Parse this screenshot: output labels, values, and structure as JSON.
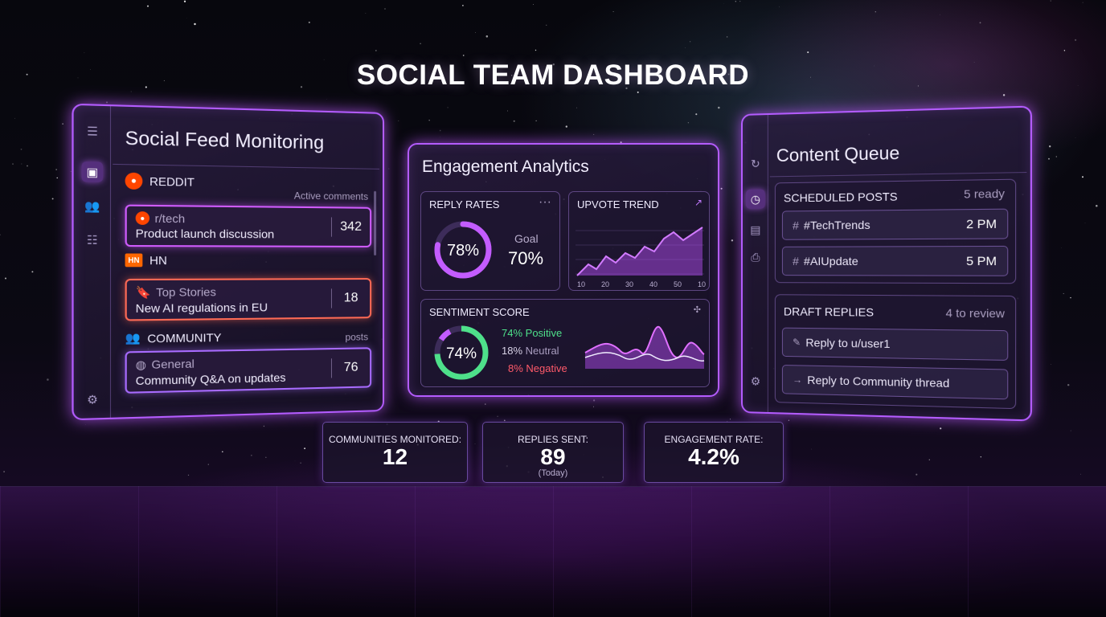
{
  "title": "SOCIAL TEAM DASHBOARD",
  "feed": {
    "title": "Social Feed Monitoring",
    "reddit": {
      "label": "REDDIT",
      "hint": "Active comments",
      "card": {
        "source": "r/tech",
        "text": "Product launch discussion",
        "count": "342"
      }
    },
    "hn": {
      "label": "HN",
      "badge": "HN",
      "card": {
        "source": "Top Stories",
        "text": "New AI regulations in EU",
        "count": "18"
      }
    },
    "community": {
      "label": "COMMUNITY",
      "hint": "posts",
      "card": {
        "source": "General",
        "text": "Community Q&A on updates",
        "count": "76"
      }
    }
  },
  "analytics": {
    "title": "Engagement Analytics",
    "reply_rates": {
      "label": "REPLY RATES",
      "value": "78%",
      "fraction": 0.78,
      "goal_label": "Goal",
      "goal_value": "70%"
    },
    "upvote_trend": {
      "label": "UPVOTE TREND",
      "ticks": [
        "10",
        "20",
        "30",
        "40",
        "50",
        "10"
      ]
    },
    "sentiment": {
      "label": "SENTIMENT SCORE",
      "value": "74%",
      "positive": {
        "pct": "74%",
        "label": "Positive",
        "color": "#4ee08a"
      },
      "neutral": {
        "pct": "18%",
        "label": "Neutral",
        "color": "#d8d2e6"
      },
      "negative": {
        "pct": "8%",
        "label": "Negative",
        "color": "#ff5a6a"
      }
    }
  },
  "queue": {
    "title": "Content Queue",
    "scheduled": {
      "label": "SCHEDULED POSTS",
      "status": "5 ready",
      "items": [
        {
          "tag": "#TechTrends",
          "time": "2 PM"
        },
        {
          "tag": "#AIUpdate",
          "time": "5 PM"
        }
      ]
    },
    "drafts": {
      "label": "DRAFT REPLIES",
      "status": "4 to review",
      "items": [
        {
          "text": "Reply to u/user1"
        },
        {
          "text": "Reply to Community thread"
        }
      ]
    }
  },
  "kpis": [
    {
      "label": "COMMUNITIES MONITORED:",
      "value": "12",
      "note": ""
    },
    {
      "label": "REPLIES SENT:",
      "value": "89",
      "note": "(Today)"
    },
    {
      "label": "ENGAGEMENT RATE:",
      "value": "4.2%",
      "note": ""
    }
  ],
  "colors": {
    "accent": "#b45cff",
    "reddit": "#ff4500",
    "hn": "#ff6600"
  }
}
